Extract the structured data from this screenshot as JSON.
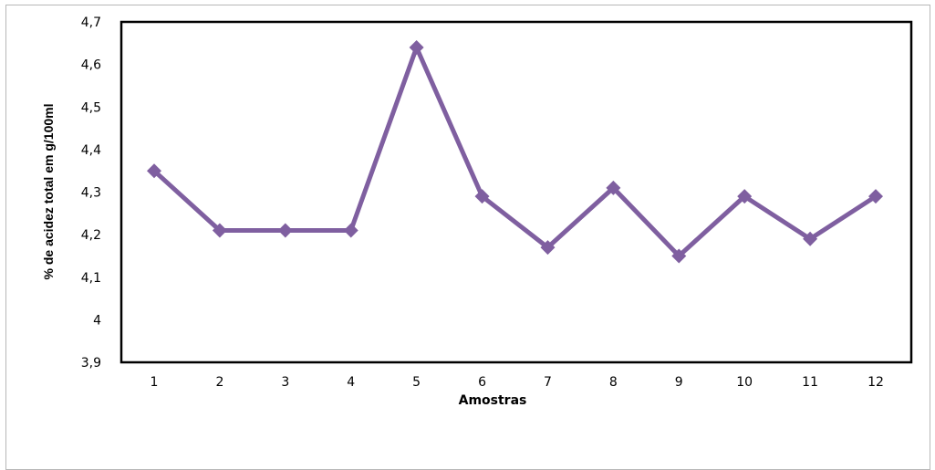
{
  "chart_data": {
    "type": "line",
    "xlabel": "Amostras",
    "ylabel": "% de acidez total em g/100ml",
    "categories": [
      "1",
      "2",
      "3",
      "4",
      "5",
      "6",
      "7",
      "8",
      "9",
      "10",
      "11",
      "12"
    ],
    "series": [
      {
        "values": [
          4.35,
          4.21,
          4.21,
          4.21,
          4.64,
          4.29,
          4.17,
          4.31,
          4.15,
          4.29,
          4.19,
          4.29
        ]
      }
    ],
    "ylim": [
      3.9,
      4.7
    ],
    "yticks": [
      "3,9",
      "4",
      "4,1",
      "4,2",
      "4,3",
      "4,4",
      "4,5",
      "4,6",
      "4,7"
    ],
    "grid": false,
    "legend": "none",
    "colors": {
      "series": "#7f5fa0",
      "axis": "#000000"
    }
  }
}
